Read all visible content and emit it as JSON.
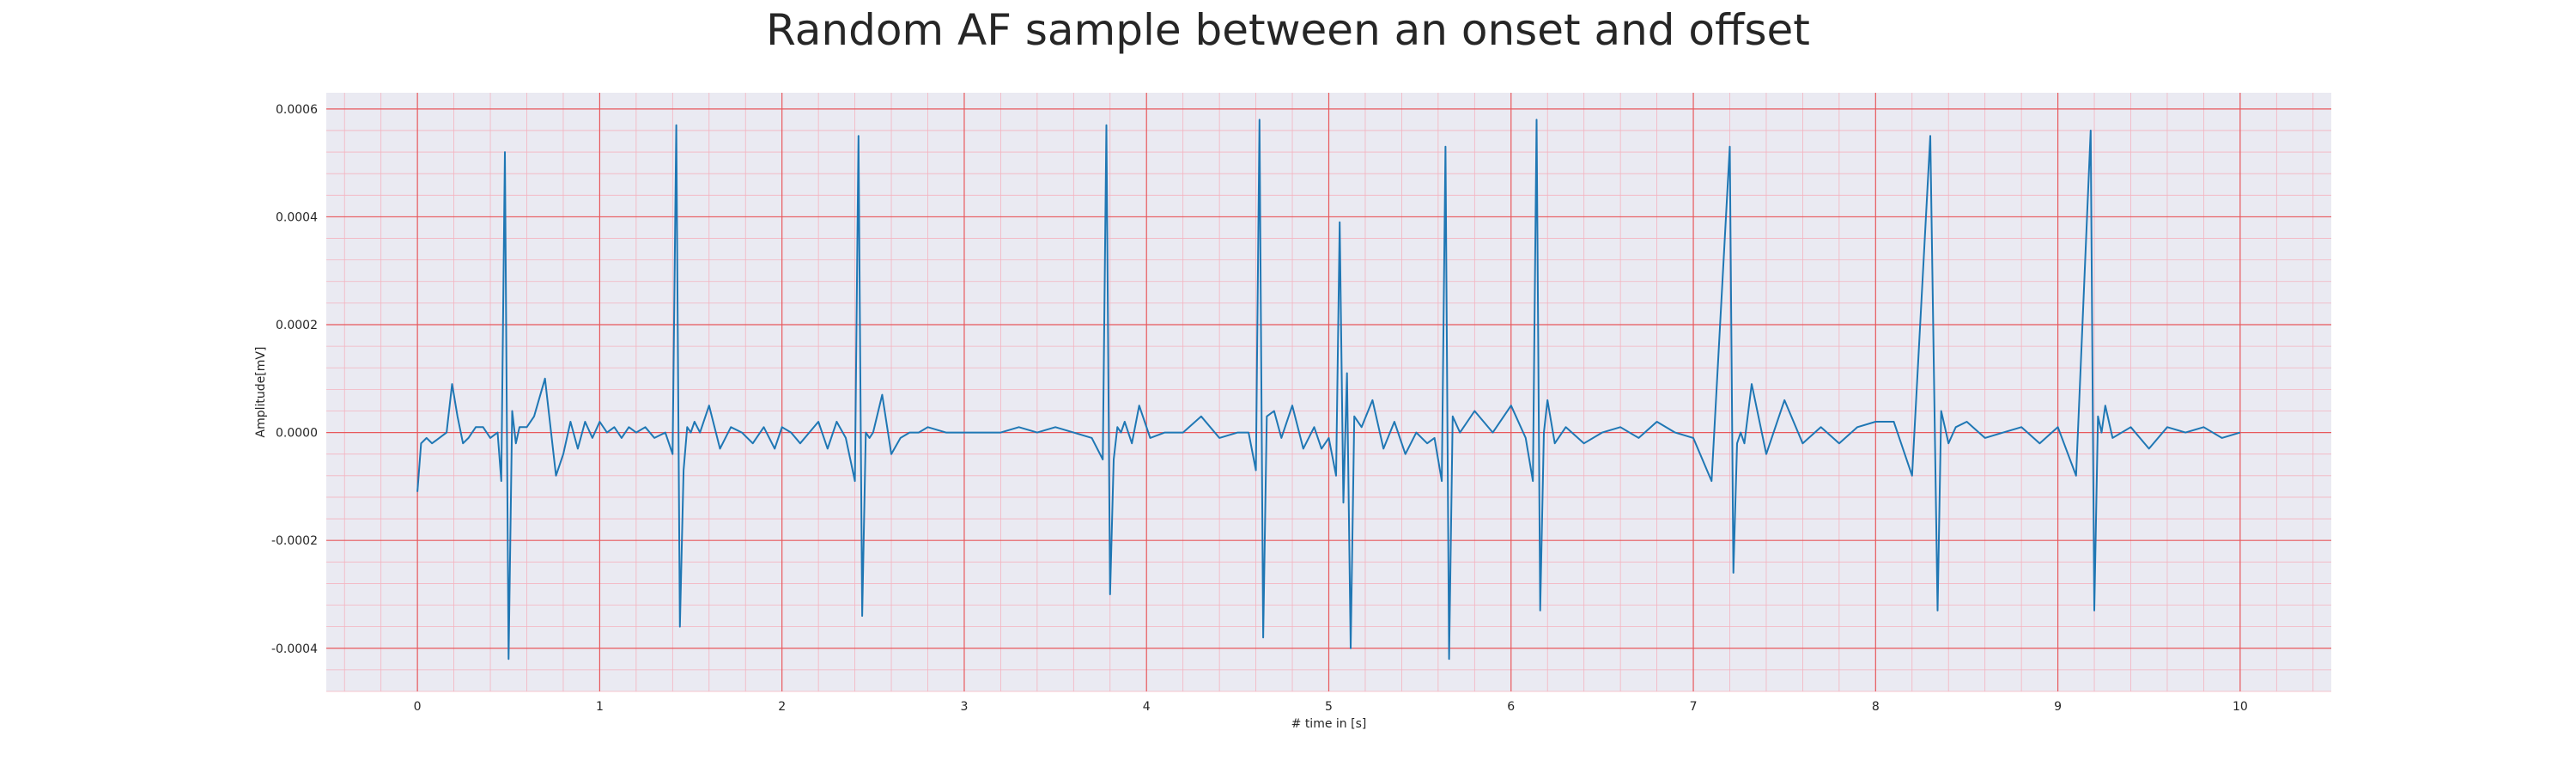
{
  "chart_data": {
    "type": "line",
    "title": "Random AF sample between an onset and offset",
    "xlabel": "# time in [s]",
    "ylabel": "Amplitude[mV]",
    "xlim": [
      -0.5,
      10.5
    ],
    "ylim": [
      -0.00048,
      0.00063
    ],
    "xticks": [
      0,
      1,
      2,
      3,
      4,
      5,
      6,
      7,
      8,
      9,
      10
    ],
    "xtick_labels": [
      "0",
      "1",
      "2",
      "3",
      "4",
      "5",
      "6",
      "7",
      "8",
      "9",
      "10"
    ],
    "yticks": [
      -0.0004,
      -0.0002,
      0.0,
      0.0002,
      0.0004,
      0.0006
    ],
    "ytick_labels": [
      "-0.0004",
      "-0.0002",
      "0.0000",
      "0.0002",
      "0.0004",
      "0.0006"
    ],
    "grid": "major and minor",
    "grid_major_color": "#e8585c",
    "grid_minor_color": "#f4b3bf",
    "background_color": "#eaeaf2",
    "series": [
      {
        "color": "#1f77b4",
        "x": [
          0.0,
          0.02,
          0.05,
          0.08,
          0.12,
          0.16,
          0.19,
          0.22,
          0.25,
          0.28,
          0.32,
          0.36,
          0.4,
          0.44,
          0.46,
          0.48,
          0.5,
          0.52,
          0.54,
          0.56,
          0.58,
          0.6,
          0.64,
          0.7,
          0.76,
          0.8,
          0.84,
          0.88,
          0.92,
          0.96,
          1.0,
          1.04,
          1.08,
          1.12,
          1.16,
          1.2,
          1.25,
          1.3,
          1.36,
          1.4,
          1.42,
          1.44,
          1.46,
          1.48,
          1.5,
          1.52,
          1.55,
          1.6,
          1.66,
          1.72,
          1.78,
          1.84,
          1.9,
          1.96,
          2.0,
          2.05,
          2.1,
          2.15,
          2.2,
          2.25,
          2.3,
          2.35,
          2.4,
          2.42,
          2.44,
          2.46,
          2.48,
          2.5,
          2.55,
          2.6,
          2.65,
          2.7,
          2.75,
          2.8,
          2.9,
          3.0,
          3.1,
          3.2,
          3.3,
          3.4,
          3.5,
          3.6,
          3.7,
          3.76,
          3.78,
          3.8,
          3.82,
          3.84,
          3.86,
          3.88,
          3.92,
          3.96,
          4.02,
          4.1,
          4.2,
          4.3,
          4.4,
          4.5,
          4.56,
          4.6,
          4.62,
          4.64,
          4.66,
          4.7,
          4.74,
          4.8,
          4.86,
          4.92,
          4.96,
          5.0,
          5.04,
          5.06,
          5.08,
          5.1,
          5.12,
          5.14,
          5.18,
          5.24,
          5.3,
          5.36,
          5.42,
          5.48,
          5.54,
          5.58,
          5.62,
          5.64,
          5.66,
          5.68,
          5.72,
          5.8,
          5.9,
          6.0,
          6.08,
          6.12,
          6.14,
          6.16,
          6.18,
          6.2,
          6.24,
          6.3,
          6.4,
          6.5,
          6.6,
          6.7,
          6.8,
          6.9,
          7.0,
          7.1,
          7.2,
          7.22,
          7.24,
          7.26,
          7.28,
          7.32,
          7.4,
          7.5,
          7.6,
          7.7,
          7.8,
          7.9,
          8.0,
          8.1,
          8.2,
          8.3,
          8.34,
          8.36,
          8.38,
          8.4,
          8.44,
          8.5,
          8.6,
          8.7,
          8.8,
          8.9,
          9.0,
          9.1,
          9.18,
          9.2,
          9.22,
          9.24,
          9.26,
          9.3,
          9.4,
          9.5,
          9.6,
          9.7,
          9.8,
          9.9,
          10.0
        ],
        "y": [
          -0.00011,
          -2e-05,
          -1e-05,
          -2e-05,
          -1e-05,
          0.0,
          9e-05,
          3e-05,
          -2e-05,
          -1e-05,
          1e-05,
          1e-05,
          -1e-05,
          0.0,
          -9e-05,
          0.00052,
          -0.00042,
          4e-05,
          -2e-05,
          1e-05,
          1e-05,
          1e-05,
          3e-05,
          0.0001,
          -8e-05,
          -4e-05,
          2e-05,
          -3e-05,
          2e-05,
          -1e-05,
          2e-05,
          0.0,
          1e-05,
          -1e-05,
          1e-05,
          0.0,
          1e-05,
          -1e-05,
          0.0,
          -4e-05,
          0.00057,
          -0.00036,
          -7e-05,
          1e-05,
          0.0,
          2e-05,
          0.0,
          5e-05,
          -3e-05,
          1e-05,
          0.0,
          -2e-05,
          1e-05,
          -3e-05,
          1e-05,
          0.0,
          -2e-05,
          0.0,
          2e-05,
          -3e-05,
          2e-05,
          -1e-05,
          -9e-05,
          0.00055,
          -0.00034,
          0.0,
          -1e-05,
          0.0,
          7e-05,
          -4e-05,
          -1e-05,
          0.0,
          0.0,
          1e-05,
          0.0,
          0.0,
          0.0,
          0.0,
          1e-05,
          0.0,
          1e-05,
          0.0,
          -1e-05,
          -5e-05,
          0.00057,
          -0.0003,
          -5e-05,
          1e-05,
          0.0,
          2e-05,
          -2e-05,
          5e-05,
          -1e-05,
          0.0,
          0.0,
          3e-05,
          -1e-05,
          0.0,
          0.0,
          -7e-05,
          0.00058,
          -0.00038,
          3e-05,
          4e-05,
          -1e-05,
          5e-05,
          -3e-05,
          1e-05,
          -3e-05,
          -1e-05,
          -8e-05,
          0.00039,
          -0.00013,
          0.00011,
          -0.0004,
          3e-05,
          1e-05,
          6e-05,
          -3e-05,
          2e-05,
          -4e-05,
          0.0,
          -2e-05,
          -1e-05,
          -9e-05,
          0.00053,
          -0.00042,
          3e-05,
          0.0,
          4e-05,
          0.0,
          5e-05,
          -1e-05,
          -9e-05,
          0.00058,
          -0.00033,
          0.0,
          6e-05,
          -2e-05,
          1e-05,
          -2e-05,
          0.0,
          1e-05,
          -1e-05,
          2e-05,
          0.0,
          -1e-05,
          -9e-05,
          0.00053,
          -0.00026,
          -2e-05,
          0.0,
          -2e-05,
          9e-05,
          -4e-05,
          6e-05,
          -2e-05,
          1e-05,
          -2e-05,
          1e-05,
          2e-05,
          2e-05,
          -8e-05,
          0.00055,
          -0.00033,
          4e-05,
          1e-05,
          -2e-05,
          1e-05,
          2e-05,
          -1e-05,
          0.0,
          1e-05,
          -2e-05,
          1e-05,
          -8e-05,
          0.00056,
          -0.00033,
          3e-05,
          0.0,
          5e-05,
          -1e-05,
          1e-05,
          -3e-05,
          1e-05,
          0.0,
          1e-05,
          -1e-05,
          0.0
        ]
      }
    ]
  }
}
